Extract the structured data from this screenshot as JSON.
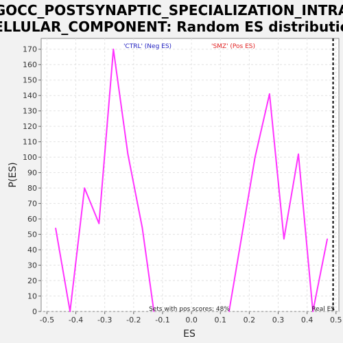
{
  "chart_data": {
    "type": "line",
    "title_line1": "GOCC_POSTSYNAPTIC_SPECIALIZATION_INTRA",
    "title_line2": "CELLULAR_COMPONENT: Random ES distribution",
    "xlabel": "ES",
    "ylabel": "P(ES)",
    "xlim": [
      -0.52,
      0.51
    ],
    "ylim": [
      0,
      177
    ],
    "xticks": [
      "-0.5",
      "-0.4",
      "-0.3",
      "-0.2",
      "-0.1",
      "0.0",
      "0.1",
      "0.2",
      "0.3",
      "0.4",
      "0.5"
    ],
    "yticks": [
      "0",
      "10",
      "20",
      "30",
      "40",
      "50",
      "60",
      "70",
      "80",
      "90",
      "100",
      "110",
      "120",
      "130",
      "140",
      "150",
      "160",
      "170"
    ],
    "grid": true,
    "series": [
      {
        "color": "#ff33ff",
        "segments": [
          {
            "x": [
              -0.47,
              -0.42,
              -0.37,
              -0.32,
              -0.27,
              -0.22,
              -0.17,
              -0.13
            ],
            "y": [
              54,
              0,
              80,
              57,
              170,
              102,
              54,
              0
            ]
          },
          {
            "x": [
              0.13,
              0.22,
              0.27,
              0.32,
              0.37,
              0.42,
              0.47
            ],
            "y": [
              0,
              100,
              141,
              47,
              102,
              0,
              47
            ]
          }
        ]
      }
    ],
    "real_es": 0.49,
    "annotations": {
      "neg_label": "'CTRL' (Neg ES)",
      "pos_label": "'SMZ' (Pos ES)",
      "pos_scores": "Sets with pos scores: 48%",
      "real_es_label": "Real ES"
    },
    "colors": {
      "line": "#ff33ff",
      "neg": "#2020c0",
      "pos": "#e02020",
      "background": "#f2f2f2",
      "plot_background": "#ffffff",
      "grid": "#e2e2e2"
    }
  }
}
